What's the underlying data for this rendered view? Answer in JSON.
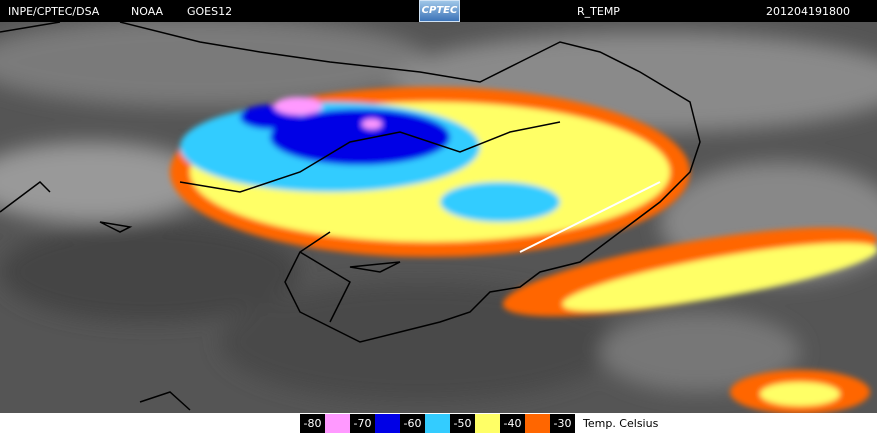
{
  "header": {
    "source": "INPE/CPTEC/DSA",
    "agency": "NOAA",
    "satellite": "GOES12",
    "logo": "CPTEC",
    "product": "R_TEMP",
    "timestamp": "201204191800"
  },
  "legend": {
    "entries": [
      {
        "label": -80,
        "color": "#ff99ff"
      },
      {
        "label": -70,
        "color": "#0000e6"
      },
      {
        "label": -60,
        "color": "#33ccff"
      },
      {
        "label": -50,
        "color": "#ffff66"
      },
      {
        "label": -40,
        "color": "#ff6600"
      },
      {
        "label": -30
      }
    ],
    "unit": "Temp. Celsius"
  }
}
